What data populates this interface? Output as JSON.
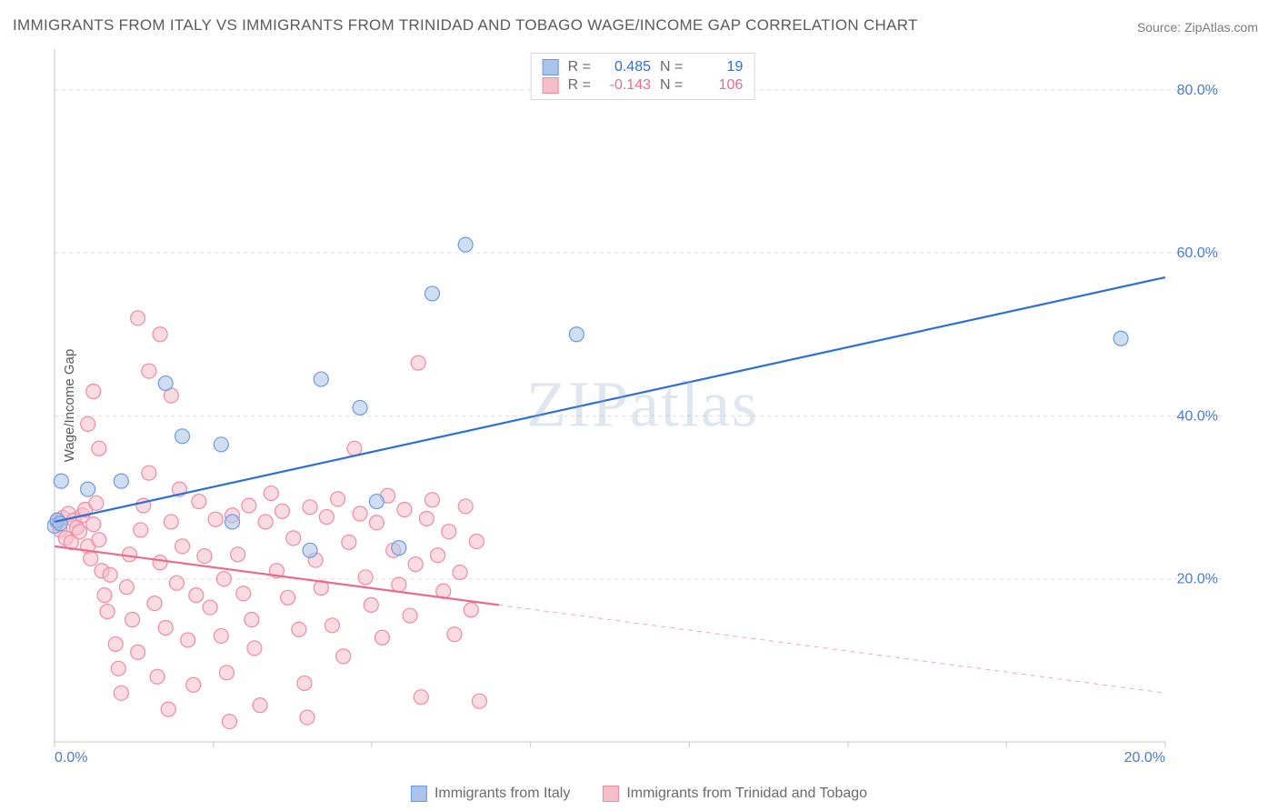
{
  "title": "IMMIGRANTS FROM ITALY VS IMMIGRANTS FROM TRINIDAD AND TOBAGO WAGE/INCOME GAP CORRELATION CHART",
  "source": "Source: ZipAtlas.com",
  "ylabel": "Wage/Income Gap",
  "watermark": "ZIPatlas",
  "chart": {
    "type": "scatter",
    "background_color": "#ffffff",
    "grid_color": "#dedede",
    "axis_color": "#c7c7c7",
    "tick_label_color": "#4a7bd0",
    "xlim": [
      0,
      20
    ],
    "ylim": [
      0,
      85
    ],
    "xticks": [
      0,
      2.86,
      5.71,
      8.57,
      11.43,
      14.29,
      17.14,
      20
    ],
    "xtick_labels": [
      "0.0%",
      "",
      "",
      "",
      "",
      "",
      "",
      "20.0%"
    ],
    "yticks": [
      20,
      40,
      60,
      80
    ],
    "ytick_labels": [
      "20.0%",
      "40.0%",
      "60.0%",
      "80.0%"
    ],
    "tick_fontsize": 16,
    "marker_radius": 8,
    "marker_opacity": 0.55,
    "line_width": 2.2
  },
  "series": [
    {
      "name": "Immigrants from Italy",
      "color_fill": "#a9c3ea",
      "color_stroke": "#6d9adf",
      "line_color": "#2d6fd6",
      "R": "0.485",
      "N": "19",
      "trend": {
        "x1": 0,
        "y1": 27,
        "x2": 20,
        "y2": 57,
        "dash_from_x": 20
      },
      "points": [
        [
          0.0,
          26.5
        ],
        [
          0.05,
          27.2
        ],
        [
          0.1,
          26.8
        ],
        [
          0.12,
          32
        ],
        [
          0.6,
          31
        ],
        [
          1.2,
          32
        ],
        [
          2.3,
          37.5
        ],
        [
          2.0,
          44
        ],
        [
          3.0,
          36.5
        ],
        [
          3.2,
          27
        ],
        [
          4.6,
          23.5
        ],
        [
          4.8,
          44.5
        ],
        [
          5.5,
          41
        ],
        [
          5.8,
          29.5
        ],
        [
          6.2,
          23.8
        ],
        [
          6.8,
          55
        ],
        [
          7.4,
          61
        ],
        [
          9.4,
          50
        ],
        [
          19.2,
          49.5
        ]
      ]
    },
    {
      "name": "Immigrants from Trinidad and Tobago",
      "color_fill": "#f6bdcb",
      "color_stroke": "#ed8ca4",
      "line_color": "#ea6b8d",
      "R": "-0.143",
      "N": "106",
      "trend": {
        "x1": 0,
        "y1": 24,
        "x2": 20,
        "y2": 6,
        "dash_from_x": 8
      },
      "points": [
        [
          0.05,
          27
        ],
        [
          0.1,
          26
        ],
        [
          0.15,
          27.5
        ],
        [
          0.2,
          25
        ],
        [
          0.25,
          28
        ],
        [
          0.3,
          24.5
        ],
        [
          0.35,
          27.2
        ],
        [
          0.4,
          26.3
        ],
        [
          0.45,
          25.8
        ],
        [
          0.5,
          27.8
        ],
        [
          0.55,
          28.5
        ],
        [
          0.6,
          24
        ],
        [
          0.65,
          22.5
        ],
        [
          0.7,
          26.7
        ],
        [
          0.75,
          29.3
        ],
        [
          0.8,
          24.8
        ],
        [
          0.85,
          21
        ],
        [
          0.9,
          18
        ],
        [
          0.95,
          16
        ],
        [
          1.0,
          20.5
        ],
        [
          0.6,
          39
        ],
        [
          0.7,
          43
        ],
        [
          0.8,
          36
        ],
        [
          1.1,
          12
        ],
        [
          1.15,
          9
        ],
        [
          1.2,
          6
        ],
        [
          1.3,
          19
        ],
        [
          1.35,
          23
        ],
        [
          1.4,
          15
        ],
        [
          1.5,
          11
        ],
        [
          1.55,
          26
        ],
        [
          1.6,
          29
        ],
        [
          1.7,
          33
        ],
        [
          1.8,
          17
        ],
        [
          1.85,
          8
        ],
        [
          1.9,
          22
        ],
        [
          2.0,
          14
        ],
        [
          2.05,
          4
        ],
        [
          2.1,
          27
        ],
        [
          2.2,
          19.5
        ],
        [
          2.25,
          31
        ],
        [
          2.3,
          24
        ],
        [
          2.4,
          12.5
        ],
        [
          2.5,
          7
        ],
        [
          2.55,
          18
        ],
        [
          2.6,
          29.5
        ],
        [
          2.7,
          22.8
        ],
        [
          2.8,
          16.5
        ],
        [
          2.9,
          27.3
        ],
        [
          3.0,
          13
        ],
        [
          1.5,
          52
        ],
        [
          1.7,
          45.5
        ],
        [
          1.9,
          50
        ],
        [
          2.1,
          42.5
        ],
        [
          3.05,
          20
        ],
        [
          3.1,
          8.5
        ],
        [
          3.15,
          2.5
        ],
        [
          3.2,
          27.8
        ],
        [
          3.3,
          23
        ],
        [
          3.4,
          18.2
        ],
        [
          3.5,
          29
        ],
        [
          3.55,
          15
        ],
        [
          3.6,
          11.5
        ],
        [
          3.7,
          4.5
        ],
        [
          3.8,
          27
        ],
        [
          3.9,
          30.5
        ],
        [
          4.0,
          21
        ],
        [
          4.1,
          28.3
        ],
        [
          4.2,
          17.7
        ],
        [
          4.3,
          25
        ],
        [
          4.4,
          13.8
        ],
        [
          4.5,
          7.2
        ],
        [
          4.55,
          3
        ],
        [
          4.6,
          28.8
        ],
        [
          4.7,
          22.3
        ],
        [
          4.8,
          18.9
        ],
        [
          4.9,
          27.6
        ],
        [
          5.0,
          14.3
        ],
        [
          5.1,
          29.8
        ],
        [
          5.2,
          10.5
        ],
        [
          5.3,
          24.5
        ],
        [
          5.4,
          36
        ],
        [
          5.5,
          28
        ],
        [
          5.6,
          20.2
        ],
        [
          5.7,
          16.8
        ],
        [
          5.8,
          26.9
        ],
        [
          5.9,
          12.8
        ],
        [
          6.0,
          30.2
        ],
        [
          6.1,
          23.5
        ],
        [
          6.2,
          19.3
        ],
        [
          6.3,
          28.5
        ],
        [
          6.4,
          15.5
        ],
        [
          6.5,
          21.8
        ],
        [
          6.55,
          46.5
        ],
        [
          6.6,
          5.5
        ],
        [
          6.7,
          27.4
        ],
        [
          6.8,
          29.7
        ],
        [
          6.9,
          22.9
        ],
        [
          7.0,
          18.5
        ],
        [
          7.1,
          25.8
        ],
        [
          7.2,
          13.2
        ],
        [
          7.3,
          20.8
        ],
        [
          7.4,
          28.9
        ],
        [
          7.5,
          16.2
        ],
        [
          7.6,
          24.6
        ],
        [
          7.65,
          5
        ]
      ]
    }
  ],
  "stats_legend_labels": {
    "R": "R =",
    "N": "N ="
  },
  "xlegend": [
    {
      "label": "Immigrants from Italy",
      "fill": "#a9c3ea",
      "stroke": "#6d9adf"
    },
    {
      "label": "Immigrants from Trinidad and Tobago",
      "fill": "#f6bdcb",
      "stroke": "#ed8ca4"
    }
  ]
}
